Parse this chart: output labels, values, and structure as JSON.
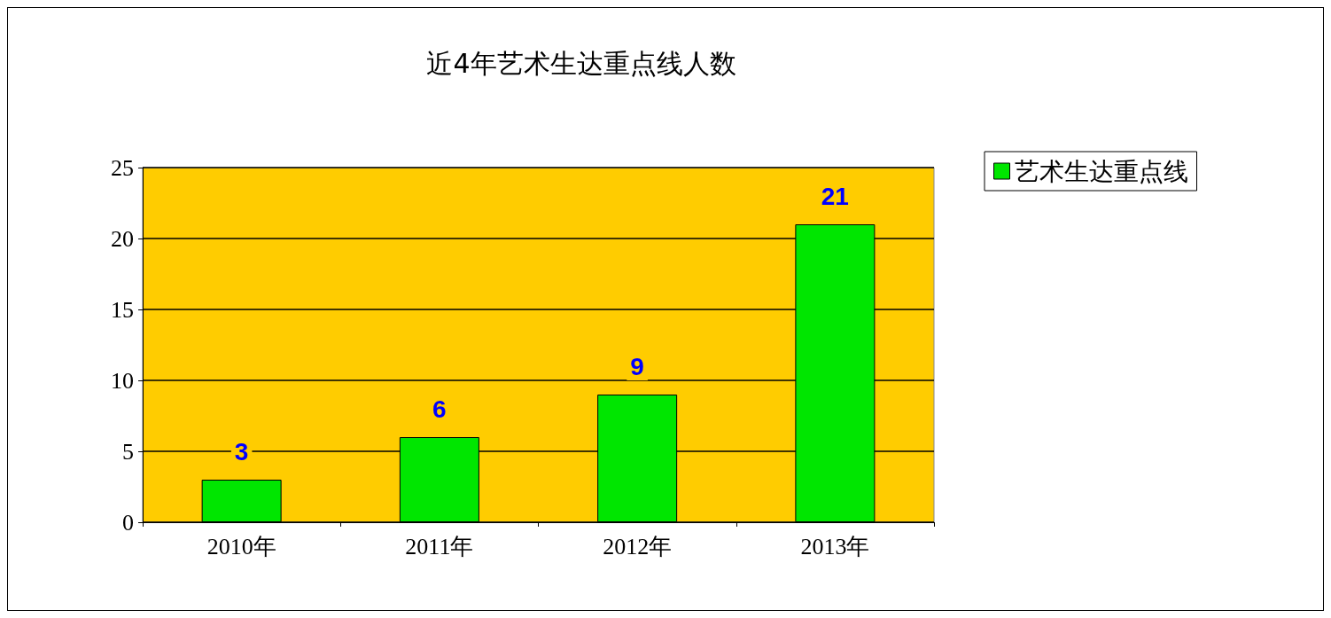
{
  "chart_data": {
    "type": "bar",
    "title": "近4年艺术生达重点线人数",
    "categories": [
      "2010年",
      "2011年",
      "2012年",
      "2013年"
    ],
    "series": [
      {
        "name": "艺术生达重点线",
        "color": "#00e600",
        "values": [
          3,
          6,
          9,
          21
        ]
      }
    ],
    "ylim": [
      0,
      25
    ],
    "yticks": [
      0,
      5,
      10,
      15,
      20,
      25
    ],
    "grid": "y",
    "legend": "right",
    "data_labels": true
  }
}
